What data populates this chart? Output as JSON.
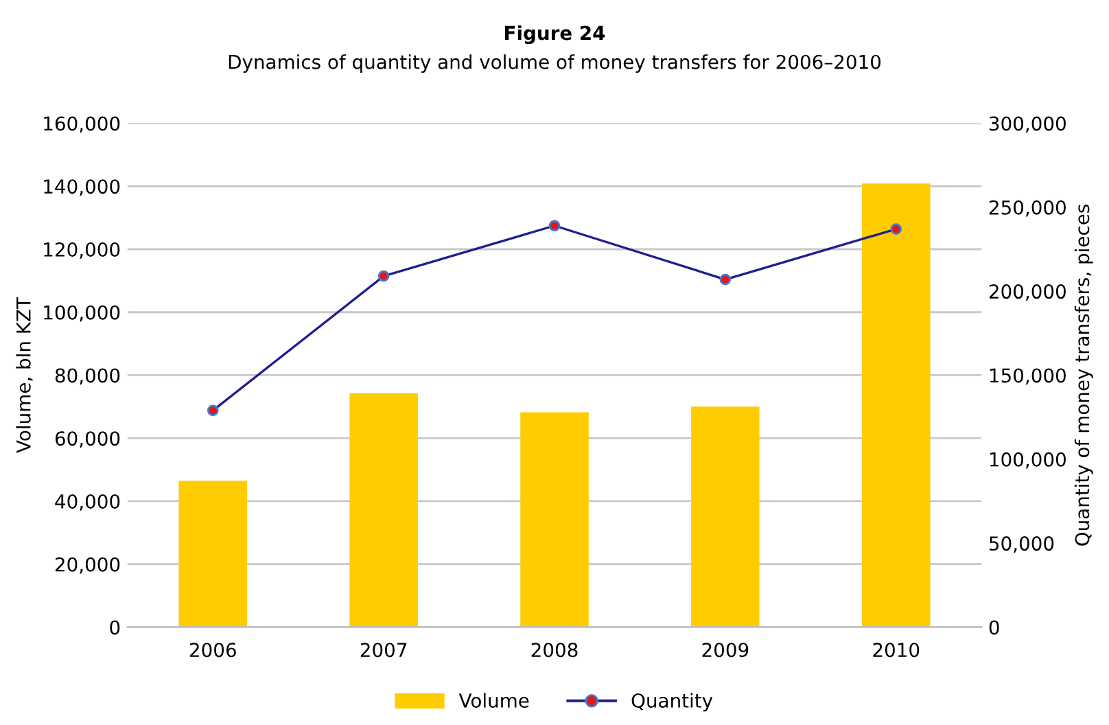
{
  "chart_data": {
    "type": "bar",
    "title": "Figure 24",
    "subtitle": "Dynamics of quantity and volume of money transfers for 2006–2010",
    "ylabel": "Volume, bln KZT",
    "y2label": "Quantity of money transfers, pieces",
    "categories": [
      "2006",
      "2007",
      "2008",
      "2009",
      "2010"
    ],
    "series": [
      {
        "name": "Volume",
        "color": "#ffcc00",
        "values": [
          46500,
          74300,
          68200,
          70000,
          140900
        ]
      },
      {
        "name": "Quantity",
        "type": "line",
        "axis": "y2",
        "color": "#1f1f8f",
        "marker": "circle",
        "values": [
          129000,
          209000,
          239000,
          207000,
          237000
        ]
      }
    ],
    "ylim": [
      0,
      160000
    ],
    "yticks": [
      {
        "value": 0,
        "label": "0"
      },
      {
        "value": 20000,
        "label": "20,000"
      },
      {
        "value": 40000,
        "label": "40,000"
      },
      {
        "value": 60000,
        "label": "60,000"
      },
      {
        "value": 80000,
        "label": "80,000"
      },
      {
        "value": 100000,
        "label": "100,000"
      },
      {
        "value": 120000,
        "label": "120,000"
      },
      {
        "value": 140000,
        "label": "140,000"
      },
      {
        "value": 160000,
        "label": "160,000"
      }
    ],
    "y2lim": [
      0,
      300000
    ],
    "y2ticks": [
      {
        "value": 0,
        "label": "0"
      },
      {
        "value": 50000,
        "label": "50,000"
      },
      {
        "value": 100000,
        "label": "100,000"
      },
      {
        "value": 150000,
        "label": "150,000"
      },
      {
        "value": 200000,
        "label": "200,000"
      },
      {
        "value": 250000,
        "label": "250,000"
      },
      {
        "value": 300000,
        "label": "300,000"
      }
    ],
    "grid": "y",
    "legend": "bottom"
  }
}
